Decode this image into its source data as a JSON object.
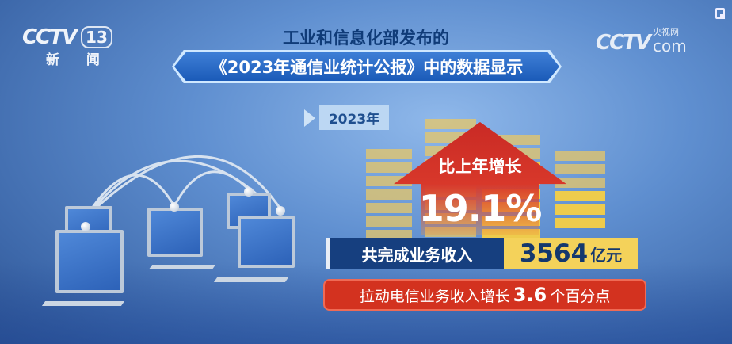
{
  "channel_logo": {
    "brand": "CCTV",
    "channel": "13",
    "name": "新 闻"
  },
  "site_logo": {
    "brand": "CCTV",
    "tagline": "央视网",
    "suffix": "com"
  },
  "headline": {
    "line1": "工业和信息化部发布的",
    "line2": "《2023年通信业统计公报》中的数据显示"
  },
  "year_tag": "2023年",
  "growth": {
    "label": "比上年增长",
    "value": "19.1%"
  },
  "revenue": {
    "label": "共完成业务收入",
    "value": "3564",
    "unit": "亿元"
  },
  "contribution": {
    "prefix": "拉动电信业务收入增长",
    "value": "3.6",
    "suffix": "个百分点"
  },
  "colors": {
    "arrow": "#c92a25",
    "revenue_label_bg": "#163f7f",
    "revenue_value_bg": "#f4d25a",
    "pill": "#d3321f"
  }
}
